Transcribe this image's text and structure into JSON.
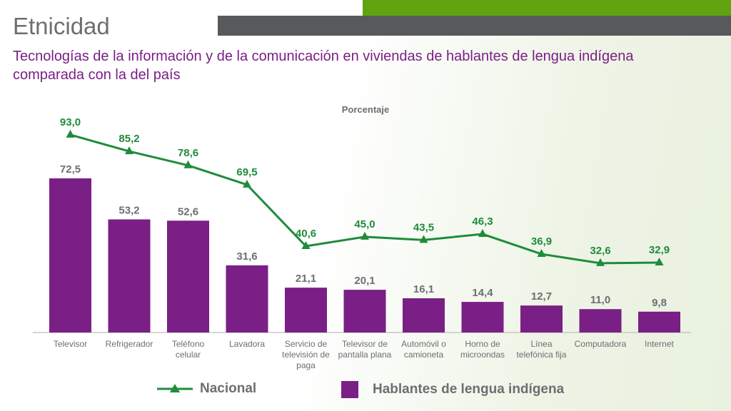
{
  "header": {
    "title": "Etnicidad",
    "subtitle": "Tecnologías de la información y de la comunicación en viviendas de hablantes de lengua indígena comparada con la del país"
  },
  "colors": {
    "bar": "#7a1f86",
    "line": "#1e8c3a",
    "accent_green": "#5fa40e",
    "accent_gray": "#58595b",
    "text_gray": "#6d6e71"
  },
  "chart_data": {
    "type": "bar",
    "ylabel": "Porcentaje",
    "categories": [
      [
        "Televisor"
      ],
      [
        "Refrigerador"
      ],
      [
        "Teléfono",
        "celular"
      ],
      [
        "Lavadora"
      ],
      [
        "Servicio de",
        "televisión de",
        "paga"
      ],
      [
        "Televisor de",
        "pantalla plana"
      ],
      [
        "Automóvil o",
        "camioneta"
      ],
      [
        "Horno de",
        "microondas"
      ],
      [
        "Línea",
        "telefónica fija"
      ],
      [
        "Computadora"
      ],
      [
        "Internet"
      ]
    ],
    "series": [
      {
        "name": "Hablantes de lengua indígena",
        "type": "bar",
        "values": [
          72.5,
          53.2,
          52.6,
          31.6,
          21.1,
          20.1,
          16.1,
          14.4,
          12.7,
          11.0,
          9.8
        ],
        "labels": [
          "72,5",
          "53,2",
          "52,6",
          "31,6",
          "21,1",
          "20,1",
          "16,1",
          "14,4",
          "12,7",
          "11,0",
          "9,8"
        ]
      },
      {
        "name": "Nacional",
        "type": "line",
        "values": [
          93.0,
          85.2,
          78.6,
          69.5,
          40.6,
          45.0,
          43.5,
          46.3,
          36.9,
          32.6,
          32.9
        ],
        "labels": [
          "93,0",
          "85,2",
          "78,6",
          "69,5",
          "40,6",
          "45,0",
          "43,5",
          "46,3",
          "36,9",
          "32,6",
          "32,9"
        ]
      }
    ],
    "legend_position": "bottom",
    "grid": false
  }
}
